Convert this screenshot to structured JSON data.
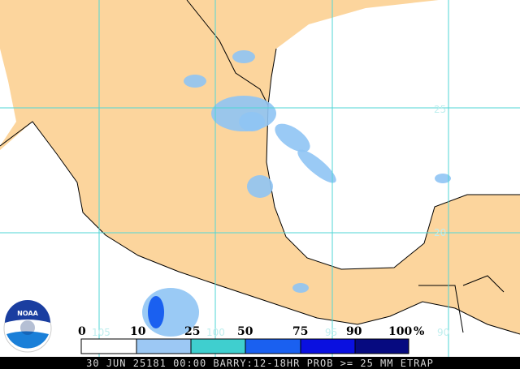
{
  "map": {
    "lat_labels": [
      "25",
      "20"
    ],
    "lon_labels": [
      "105",
      "100",
      "95",
      "90"
    ]
  },
  "legend": {
    "labels": [
      "0",
      "10",
      "25",
      "50",
      "75",
      "90",
      "100"
    ],
    "unit": "%"
  },
  "logo": "NOAA",
  "caption": "30 JUN 25181 00:00 BARRY:12-18HR PROB >= 25 MM ETRAP"
}
